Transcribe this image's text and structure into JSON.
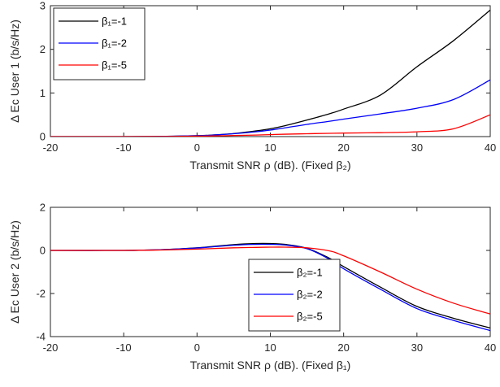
{
  "chart_data": [
    {
      "type": "line",
      "xlabel": "Transmit SNR ρ (dB). (Fixed β₂)",
      "ylabel": "Δ Eᴄ User 1 (b/s/Hz)",
      "xlim": [
        -20,
        40
      ],
      "ylim": [
        0,
        3
      ],
      "xticks": [
        "-20",
        "-10",
        "0",
        "10",
        "20",
        "30",
        "40"
      ],
      "yticks": [
        "0",
        "1",
        "2",
        "3"
      ],
      "grid": false,
      "legend_position": "top-left",
      "series": [
        {
          "name": "β₁=-1",
          "color": "#000000",
          "x": [
            -20,
            -10,
            -5,
            0,
            2,
            5,
            8,
            10,
            12,
            15,
            18,
            20,
            25,
            30,
            35,
            40
          ],
          "y": [
            0,
            0,
            0.005,
            0.02,
            0.035,
            0.07,
            0.13,
            0.18,
            0.25,
            0.38,
            0.52,
            0.63,
            0.95,
            1.6,
            2.2,
            2.9
          ]
        },
        {
          "name": "β₁=-2",
          "color": "#0000ff",
          "x": [
            -20,
            -10,
            -5,
            0,
            2,
            5,
            8,
            10,
            12,
            15,
            18,
            20,
            25,
            30,
            35,
            40
          ],
          "y": [
            0,
            0,
            0.005,
            0.02,
            0.033,
            0.065,
            0.11,
            0.15,
            0.2,
            0.28,
            0.35,
            0.4,
            0.52,
            0.65,
            0.85,
            1.3
          ]
        },
        {
          "name": "β₁=-5",
          "color": "#ff0000",
          "x": [
            -20,
            -10,
            -5,
            0,
            2,
            5,
            8,
            10,
            12,
            15,
            18,
            20,
            25,
            30,
            35,
            40
          ],
          "y": [
            0,
            0,
            0.003,
            0.01,
            0.015,
            0.025,
            0.035,
            0.045,
            0.055,
            0.065,
            0.075,
            0.08,
            0.09,
            0.11,
            0.18,
            0.5
          ]
        }
      ],
      "legend": [
        "β₁=-1",
        "β₁=-2",
        "β₁=-5"
      ]
    },
    {
      "type": "line",
      "xlabel": "Transmit SNR ρ (dB). (Fixed β₁)",
      "ylabel": "Δ Eᴄ User 2 (b/s/Hz)",
      "xlim": [
        -20,
        40
      ],
      "ylim": [
        -4,
        2
      ],
      "xticks": [
        "-20",
        "-10",
        "0",
        "10",
        "20",
        "30",
        "40"
      ],
      "yticks": [
        "-4",
        "-2",
        "0",
        "2"
      ],
      "grid": false,
      "legend_position": "lower-middle",
      "series": [
        {
          "name": "β₂=-1",
          "color": "#000000",
          "x": [
            -20,
            -10,
            -5,
            0,
            5,
            8,
            10,
            12,
            15,
            18,
            20,
            25,
            30,
            35,
            40
          ],
          "y": [
            0,
            0,
            0.03,
            0.12,
            0.27,
            0.32,
            0.32,
            0.28,
            0.1,
            -0.35,
            -0.75,
            -1.7,
            -2.6,
            -3.15,
            -3.6
          ]
        },
        {
          "name": "β₂=-2",
          "color": "#0000ff",
          "x": [
            -20,
            -10,
            -5,
            0,
            5,
            8,
            10,
            12,
            15,
            18,
            20,
            25,
            30,
            35,
            40
          ],
          "y": [
            0,
            0,
            0.03,
            0.11,
            0.24,
            0.28,
            0.28,
            0.25,
            0.08,
            -0.4,
            -0.85,
            -1.8,
            -2.7,
            -3.25,
            -3.72
          ]
        },
        {
          "name": "β₂=-5",
          "color": "#ff0000",
          "x": [
            -20,
            -10,
            -5,
            0,
            5,
            8,
            10,
            12,
            15,
            18,
            20,
            25,
            30,
            35,
            40
          ],
          "y": [
            0,
            0,
            0.02,
            0.06,
            0.12,
            0.14,
            0.15,
            0.15,
            0.12,
            -0.02,
            -0.25,
            -1.0,
            -1.8,
            -2.45,
            -2.95
          ]
        }
      ],
      "legend": [
        "β₂=-1",
        "β₂=-2",
        "β₂=-5"
      ]
    }
  ]
}
